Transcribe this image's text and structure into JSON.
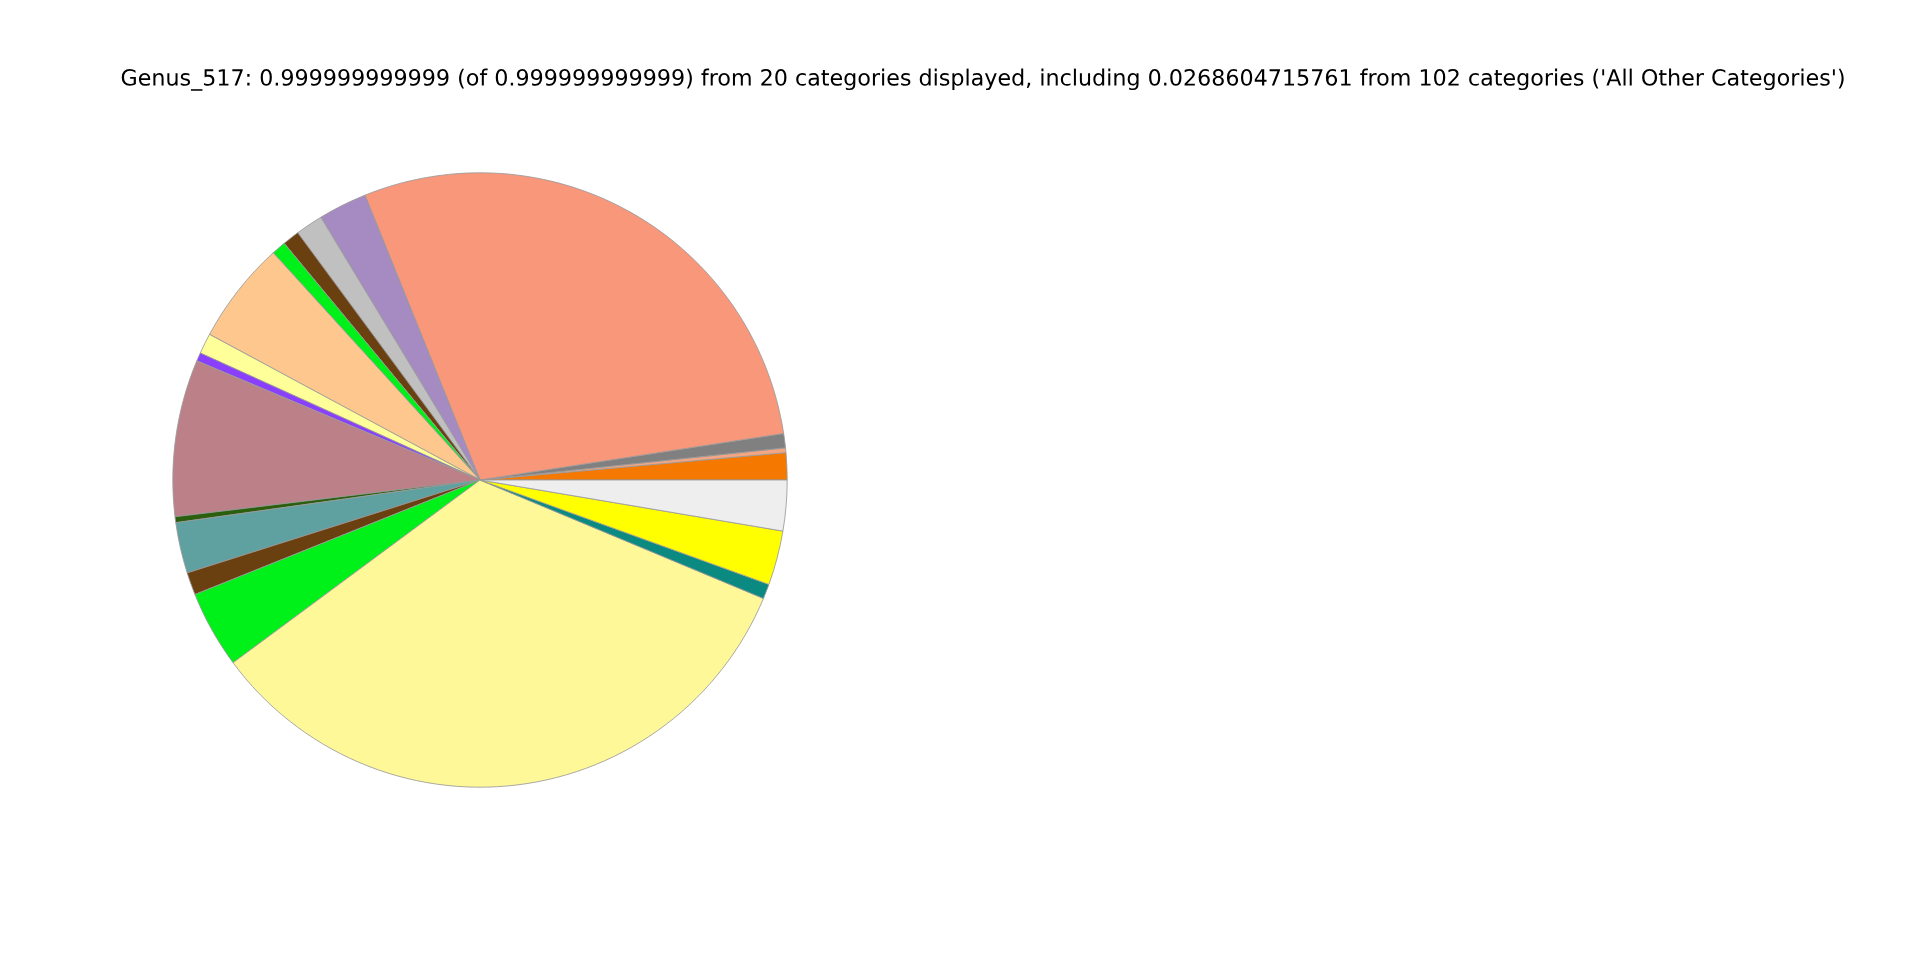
{
  "chart_data": {
    "type": "pie",
    "title": "Genus_517: 0.999999999999 (of 0.999999999999) from 20 categories displayed, including 0.0268604715761 from 102 categories ('All Other Categories')",
    "categories": [
      null,
      null,
      null,
      null,
      null,
      null,
      null,
      null,
      null,
      null,
      null,
      null,
      null,
      null,
      null,
      null,
      null,
      null,
      null,
      null
    ],
    "values": [
      1.42,
      0.25,
      0.75,
      28.69,
      2.56,
      1.44,
      0.89,
      0.75,
      5.39,
      1.08,
      0.44,
      8.25,
      0.31,
      2.67,
      1.19,
      4.06,
      33.56,
      0.78,
      2.86,
      2.66
    ],
    "colors": [
      "#f57900",
      "#f4a582",
      "#808080",
      "#f9977a",
      "#a68bc2",
      "#c0c0c0",
      "#6b4010",
      "#00f01a",
      "#fdc78d",
      "#ffff99",
      "#8a3ffc",
      "#bc8188",
      "#2b5f0e",
      "#5fa0a0",
      "#6b4010",
      "#00f01a",
      "#fff899",
      "#0a8a80",
      "#ffff00",
      "#eeeeee"
    ]
  }
}
